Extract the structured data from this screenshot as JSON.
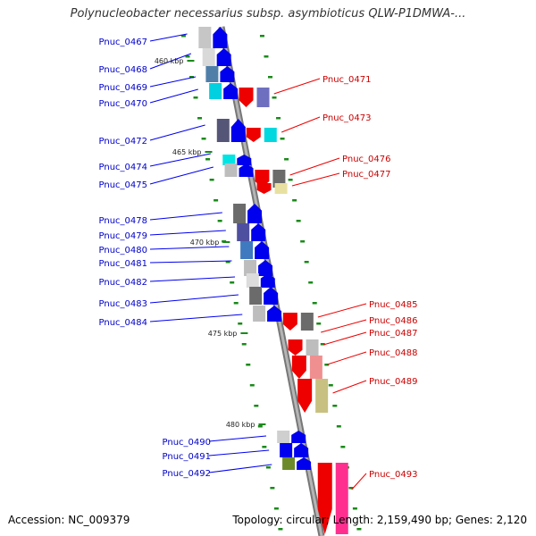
{
  "title": "Polynucleobacter necessarius subsp. asymbioticus QLW-P1DMWA-...",
  "footer": {
    "accession": "Accession: NC_009379",
    "summary": "Topology: circular; Length: 2,159,490 bp; Genes: 2,120"
  },
  "colors": {
    "backbone": "#9a9a9a",
    "plus_strand": "#0000ee",
    "minus_strand": "#ee0000",
    "tick": "#1a8a1a"
  },
  "kbp_markers": [
    "460 kbp",
    "465 kbp",
    "470 kbp",
    "475 kbp",
    "480 kbp"
  ],
  "genes_left": [
    "Pnuc_0467",
    "Pnuc_0468",
    "Pnuc_0469",
    "Pnuc_0470",
    "Pnuc_0472",
    "Pnuc_0474",
    "Pnuc_0475",
    "Pnuc_0478",
    "Pnuc_0479",
    "Pnuc_0480",
    "Pnuc_0481",
    "Pnuc_0482",
    "Pnuc_0483",
    "Pnuc_0484",
    "Pnuc_0490",
    "Pnuc_0491",
    "Pnuc_0492"
  ],
  "genes_right": [
    "Pnuc_0471",
    "Pnuc_0473",
    "Pnuc_0476",
    "Pnuc_0477",
    "Pnuc_0485",
    "Pnuc_0486",
    "Pnuc_0487",
    "Pnuc_0488",
    "Pnuc_0489",
    "Pnuc_0493"
  ]
}
